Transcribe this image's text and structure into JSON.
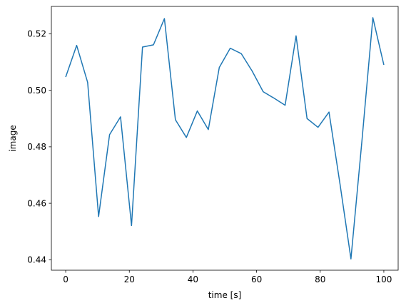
{
  "chart_data": {
    "type": "line",
    "title": "",
    "xlabel": "time [s]",
    "ylabel": "image",
    "xlim": [
      -4.5,
      104.5
    ],
    "ylim": [
      0.4363,
      0.5297
    ],
    "grid": false,
    "line_color": "#1f77b4",
    "x_ticks": [
      0,
      20,
      40,
      60,
      80,
      100
    ],
    "x_tick_labels": [
      "0",
      "20",
      "40",
      "60",
      "80",
      "100"
    ],
    "y_ticks": [
      0.44,
      0.46,
      0.48,
      0.5,
      0.52
    ],
    "y_tick_labels": [
      "0.44",
      "0.46",
      "0.48",
      "0.50",
      "0.52"
    ],
    "series": [
      {
        "x": [
          0.0,
          3.45,
          6.9,
          10.34,
          13.79,
          17.24,
          20.69,
          24.14,
          27.59,
          31.03,
          34.48,
          37.93,
          41.38,
          44.83,
          48.28,
          51.72,
          55.17,
          58.62,
          62.07,
          65.52,
          68.97,
          72.41,
          75.86,
          79.31,
          82.76,
          86.21,
          89.66,
          93.1,
          96.55,
          100.0
        ],
        "y": [
          0.5047,
          0.5159,
          0.5028,
          0.4553,
          0.4843,
          0.4906,
          0.4521,
          0.5153,
          0.5161,
          0.5254,
          0.4896,
          0.4833,
          0.4927,
          0.4861,
          0.5081,
          0.5149,
          0.513,
          0.5068,
          0.4995,
          0.4972,
          0.4947,
          0.5193,
          0.49,
          0.4869,
          0.4923,
          0.4669,
          0.4403,
          0.4819,
          0.5257,
          0.509
        ]
      }
    ]
  }
}
